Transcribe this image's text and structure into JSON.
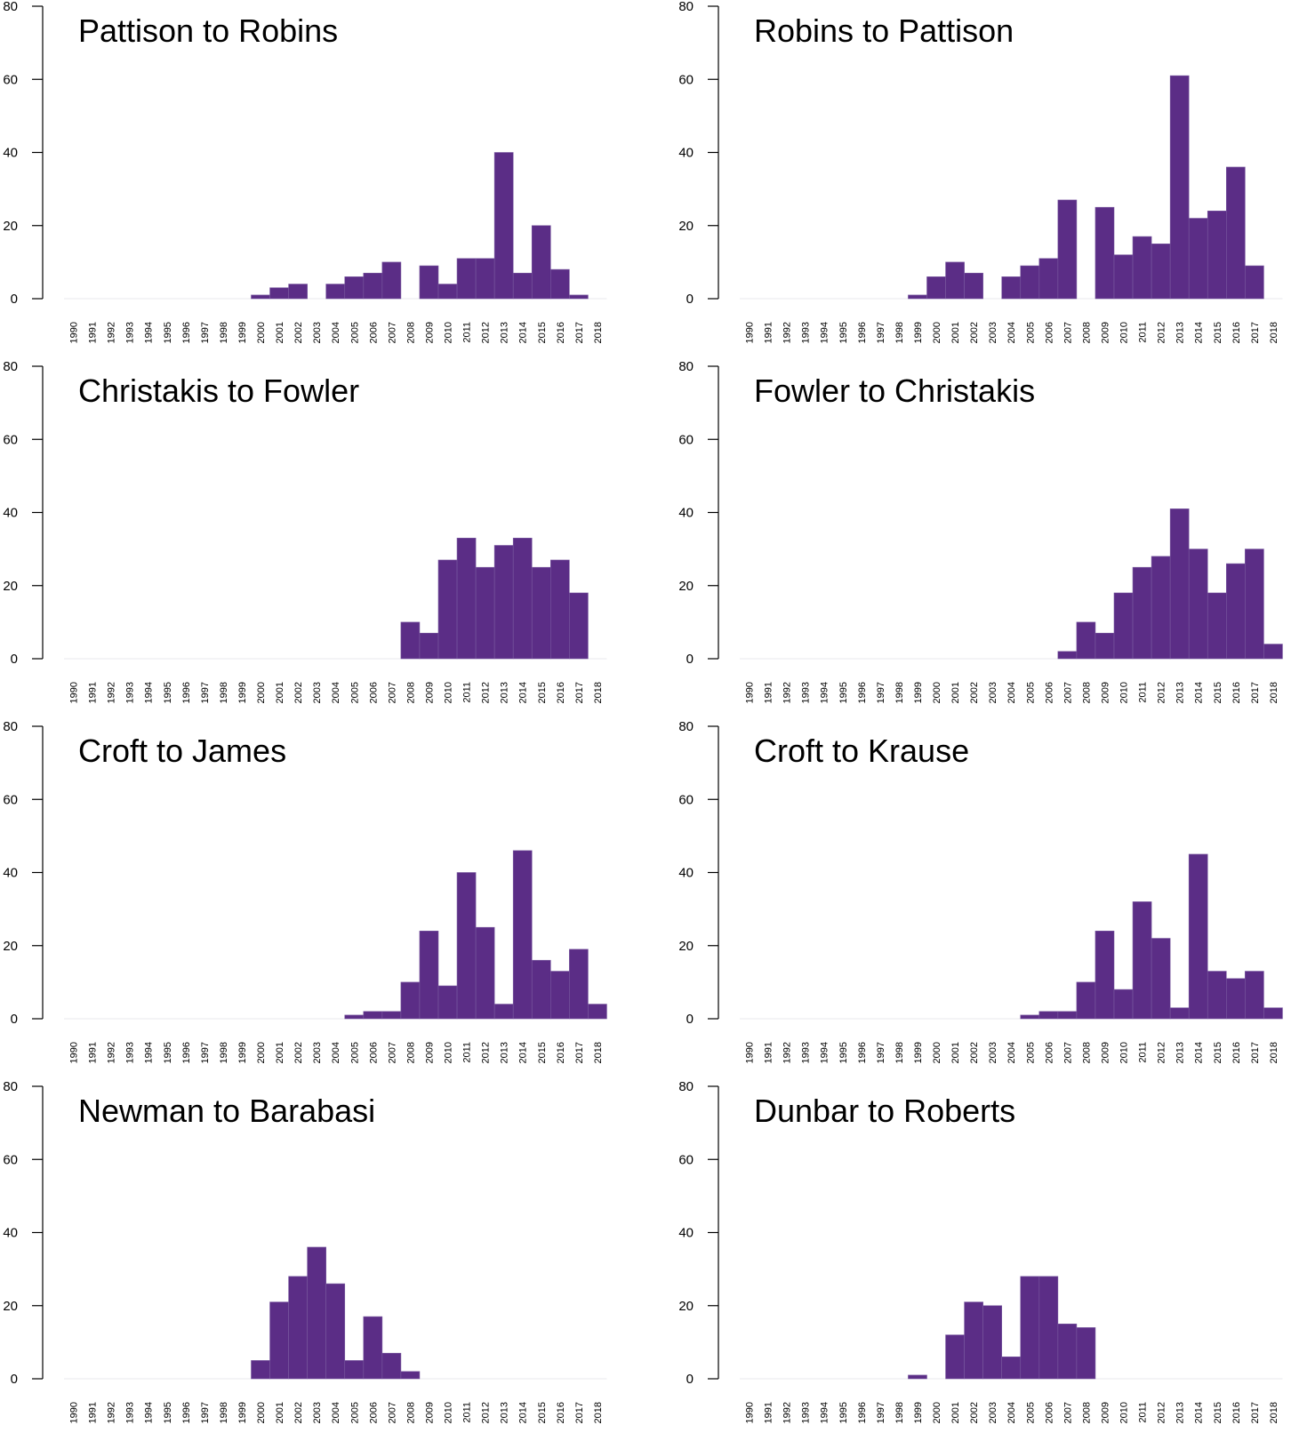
{
  "style": {
    "bar_color": "#5b2d86",
    "axis_color": "#000000"
  },
  "chart_data": [
    {
      "type": "bar",
      "title": "Pattison to Robins",
      "ylim": [
        0,
        80
      ],
      "yticks": [
        0,
        20,
        40,
        60,
        80
      ],
      "categories": [
        "1990",
        "1991",
        "1992",
        "1993",
        "1994",
        "1995",
        "1996",
        "1997",
        "1998",
        "1999",
        "2000",
        "2001",
        "2002",
        "2003",
        "2004",
        "2005",
        "2006",
        "2007",
        "2008",
        "2009",
        "2010",
        "2011",
        "2012",
        "2013",
        "2014",
        "2015",
        "2016",
        "2017",
        "2018"
      ],
      "values": [
        0,
        0,
        0,
        0,
        0,
        0,
        0,
        0,
        0,
        0,
        1,
        3,
        4,
        0,
        4,
        6,
        7,
        10,
        0,
        9,
        4,
        11,
        11,
        40,
        7,
        20,
        8,
        1,
        0
      ]
    },
    {
      "type": "bar",
      "title": "Robins to Pattison",
      "ylim": [
        0,
        80
      ],
      "yticks": [
        0,
        20,
        40,
        60,
        80
      ],
      "categories": [
        "1990",
        "1991",
        "1992",
        "1993",
        "1994",
        "1995",
        "1996",
        "1997",
        "1998",
        "1999",
        "2000",
        "2001",
        "2002",
        "2003",
        "2004",
        "2005",
        "2006",
        "2007",
        "2008",
        "2009",
        "2010",
        "2011",
        "2012",
        "2013",
        "2014",
        "2015",
        "2016",
        "2017",
        "2018"
      ],
      "values": [
        0,
        0,
        0,
        0,
        0,
        0,
        0,
        0,
        0,
        1,
        6,
        10,
        7,
        0,
        6,
        9,
        11,
        27,
        0,
        25,
        12,
        17,
        15,
        61,
        22,
        24,
        36,
        9,
        0
      ]
    },
    {
      "type": "bar",
      "title": "Christakis to Fowler",
      "ylim": [
        0,
        80
      ],
      "yticks": [
        0,
        20,
        40,
        60,
        80
      ],
      "categories": [
        "1990",
        "1991",
        "1992",
        "1993",
        "1994",
        "1995",
        "1996",
        "1997",
        "1998",
        "1999",
        "2000",
        "2001",
        "2002",
        "2003",
        "2004",
        "2005",
        "2006",
        "2007",
        "2008",
        "2009",
        "2010",
        "2011",
        "2012",
        "2013",
        "2014",
        "2015",
        "2016",
        "2017",
        "2018"
      ],
      "values": [
        0,
        0,
        0,
        0,
        0,
        0,
        0,
        0,
        0,
        0,
        0,
        0,
        0,
        0,
        0,
        0,
        0,
        0,
        10,
        7,
        27,
        33,
        25,
        31,
        33,
        25,
        27,
        18,
        0
      ]
    },
    {
      "type": "bar",
      "title": "Fowler to Christakis",
      "ylim": [
        0,
        80
      ],
      "yticks": [
        0,
        20,
        40,
        60,
        80
      ],
      "categories": [
        "1990",
        "1991",
        "1992",
        "1993",
        "1994",
        "1995",
        "1996",
        "1997",
        "1998",
        "1999",
        "2000",
        "2001",
        "2002",
        "2003",
        "2004",
        "2005",
        "2006",
        "2007",
        "2008",
        "2009",
        "2010",
        "2011",
        "2012",
        "2013",
        "2014",
        "2015",
        "2016",
        "2017",
        "2018"
      ],
      "values": [
        0,
        0,
        0,
        0,
        0,
        0,
        0,
        0,
        0,
        0,
        0,
        0,
        0,
        0,
        0,
        0,
        0,
        2,
        10,
        7,
        18,
        25,
        28,
        41,
        30,
        18,
        26,
        30,
        4
      ]
    },
    {
      "type": "bar",
      "title": "Croft to James",
      "ylim": [
        0,
        80
      ],
      "yticks": [
        0,
        20,
        40,
        60,
        80
      ],
      "categories": [
        "1990",
        "1991",
        "1992",
        "1993",
        "1994",
        "1995",
        "1996",
        "1997",
        "1998",
        "1999",
        "2000",
        "2001",
        "2002",
        "2003",
        "2004",
        "2005",
        "2006",
        "2007",
        "2008",
        "2009",
        "2010",
        "2011",
        "2012",
        "2013",
        "2014",
        "2015",
        "2016",
        "2017",
        "2018"
      ],
      "values": [
        0,
        0,
        0,
        0,
        0,
        0,
        0,
        0,
        0,
        0,
        0,
        0,
        0,
        0,
        0,
        1,
        2,
        2,
        10,
        24,
        9,
        40,
        25,
        4,
        46,
        16,
        13,
        19,
        4
      ]
    },
    {
      "type": "bar",
      "title": "Croft to Krause",
      "ylim": [
        0,
        80
      ],
      "yticks": [
        0,
        20,
        40,
        60,
        80
      ],
      "categories": [
        "1990",
        "1991",
        "1992",
        "1993",
        "1994",
        "1995",
        "1996",
        "1997",
        "1998",
        "1999",
        "2000",
        "2001",
        "2002",
        "2003",
        "2004",
        "2005",
        "2006",
        "2007",
        "2008",
        "2009",
        "2010",
        "2011",
        "2012",
        "2013",
        "2014",
        "2015",
        "2016",
        "2017",
        "2018"
      ],
      "values": [
        0,
        0,
        0,
        0,
        0,
        0,
        0,
        0,
        0,
        0,
        0,
        0,
        0,
        0,
        0,
        1,
        2,
        2,
        10,
        24,
        8,
        32,
        22,
        3,
        45,
        13,
        11,
        13,
        3
      ]
    },
    {
      "type": "bar",
      "title": "Newman to Barabasi",
      "ylim": [
        0,
        80
      ],
      "yticks": [
        0,
        20,
        40,
        60,
        80
      ],
      "categories": [
        "1990",
        "1991",
        "1992",
        "1993",
        "1994",
        "1995",
        "1996",
        "1997",
        "1998",
        "1999",
        "2000",
        "2001",
        "2002",
        "2003",
        "2004",
        "2005",
        "2006",
        "2007",
        "2008",
        "2009",
        "2010",
        "2011",
        "2012",
        "2013",
        "2014",
        "2015",
        "2016",
        "2017",
        "2018"
      ],
      "values": [
        0,
        0,
        0,
        0,
        0,
        0,
        0,
        0,
        0,
        0,
        5,
        21,
        28,
        36,
        26,
        5,
        17,
        7,
        2,
        0,
        0,
        0,
        0,
        0,
        0,
        0,
        0,
        0,
        0
      ]
    },
    {
      "type": "bar",
      "title": "Dunbar to Roberts",
      "ylim": [
        0,
        80
      ],
      "yticks": [
        0,
        20,
        40,
        60,
        80
      ],
      "categories": [
        "1990",
        "1991",
        "1992",
        "1993",
        "1994",
        "1995",
        "1996",
        "1997",
        "1998",
        "1999",
        "2000",
        "2001",
        "2002",
        "2003",
        "2004",
        "2005",
        "2006",
        "2007",
        "2008",
        "2009",
        "2010",
        "2011",
        "2012",
        "2013",
        "2014",
        "2015",
        "2016",
        "2017",
        "2018"
      ],
      "values": [
        0,
        0,
        0,
        0,
        0,
        0,
        0,
        0,
        0,
        1,
        0,
        12,
        21,
        20,
        6,
        28,
        28,
        15,
        14,
        0,
        0,
        0,
        0,
        0,
        0,
        0,
        0,
        0,
        0
      ]
    }
  ]
}
